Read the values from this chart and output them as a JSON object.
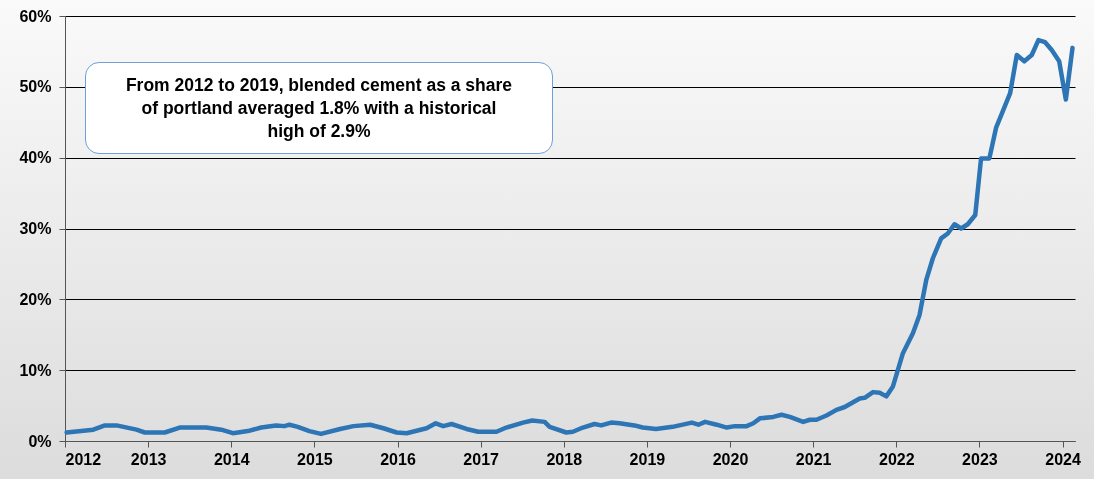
{
  "chart_data": {
    "type": "line",
    "x": [
      2012.02,
      2012.34,
      2012.48,
      2012.62,
      2012.86,
      2012.96,
      2013.2,
      2013.38,
      2013.7,
      2013.88,
      2014.02,
      2014.2,
      2014.36,
      2014.54,
      2014.64,
      2014.7,
      2014.8,
      2014.94,
      2015.08,
      2015.31,
      2015.47,
      2015.67,
      2015.83,
      2015.99,
      2016.11,
      2016.35,
      2016.46,
      2016.55,
      2016.65,
      2016.83,
      2016.97,
      2017.19,
      2017.31,
      2017.51,
      2017.62,
      2017.77,
      2017.83,
      2018.03,
      2018.11,
      2018.23,
      2018.37,
      2018.45,
      2018.57,
      2018.67,
      2018.85,
      2018.95,
      2019.11,
      2019.31,
      2019.54,
      2019.62,
      2019.7,
      2019.84,
      2019.96,
      2020.06,
      2020.2,
      2020.28,
      2020.36,
      2020.52,
      2020.62,
      2020.72,
      2020.88,
      2020.96,
      2021.04,
      2021.16,
      2021.28,
      2021.38,
      2021.56,
      2021.62,
      2021.72,
      2021.8,
      2021.88,
      2021.96,
      2022.08,
      2022.2,
      2022.28,
      2022.36,
      2022.44,
      2022.54,
      2022.62,
      2022.7,
      2022.78,
      2022.86,
      2022.95,
      2023.02,
      2023.12,
      2023.2,
      2023.37,
      2023.45,
      2023.54,
      2023.63,
      2023.71,
      2023.79,
      2023.87,
      2023.96,
      2024.04,
      2024.12
    ],
    "series": [
      {
        "color": "#2e75b6",
        "values": [
          1.2,
          1.6,
          2.2,
          2.2,
          1.6,
          1.2,
          1.2,
          1.9,
          1.9,
          1.6,
          1.1,
          1.4,
          1.9,
          2.2,
          2.1,
          2.3,
          2.0,
          1.4,
          1.0,
          1.7,
          2.1,
          2.3,
          1.8,
          1.2,
          1.1,
          1.8,
          2.5,
          2.1,
          2.4,
          1.7,
          1.3,
          1.3,
          1.9,
          2.6,
          2.9,
          2.7,
          2.0,
          1.2,
          1.3,
          1.9,
          2.4,
          2.2,
          2.6,
          2.5,
          2.2,
          1.9,
          1.7,
          2.0,
          2.6,
          2.3,
          2.7,
          2.3,
          1.9,
          2.1,
          2.1,
          2.5,
          3.2,
          3.4,
          3.7,
          3.4,
          2.7,
          3.0,
          3.0,
          3.6,
          4.4,
          4.8,
          6.0,
          6.1,
          6.9,
          6.8,
          6.3,
          7.7,
          12.4,
          15.2,
          17.8,
          22.7,
          25.8,
          28.6,
          29.3,
          30.6,
          30.0,
          30.6,
          31.9,
          39.9,
          39.9,
          44.2,
          49.1,
          54.5,
          53.6,
          54.5,
          56.6,
          56.3,
          55.2,
          53.6,
          48.2,
          55.5
        ]
      }
    ],
    "xlim": [
      2012,
      2024.15
    ],
    "xticks": [
      2012,
      2013,
      2014,
      2015,
      2016,
      2017,
      2018,
      2019,
      2020,
      2021,
      2022,
      2023,
      2024
    ],
    "ylim": [
      0,
      60
    ],
    "yticks": [
      {
        "value": 0,
        "label": "0%"
      },
      {
        "value": 10,
        "label": "10%"
      },
      {
        "value": 20,
        "label": "20%"
      },
      {
        "value": 30,
        "label": "30%"
      },
      {
        "value": 40,
        "label": "40%"
      },
      {
        "value": 50,
        "label": "50%"
      },
      {
        "value": 60,
        "label": "60%"
      }
    ],
    "grid": "y",
    "marker": "none",
    "line_style": "solid",
    "annotations": [
      "From 2012 to 2019, blended cement as a share of portland averaged 1.8% with a historical high of 2.9%"
    ]
  }
}
